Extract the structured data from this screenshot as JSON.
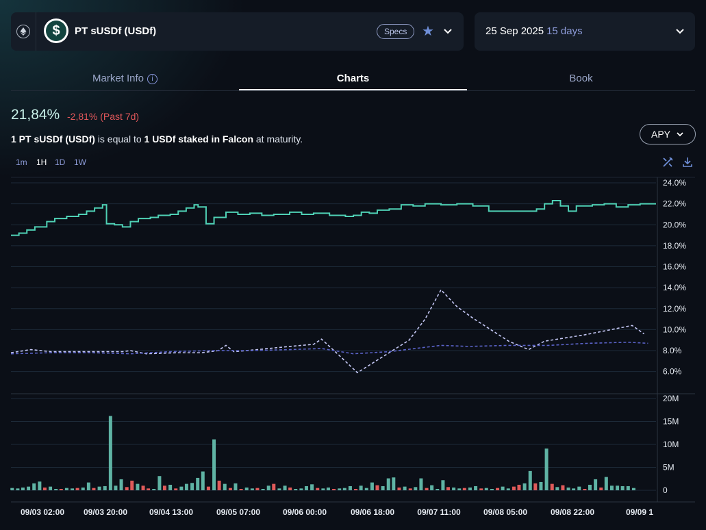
{
  "asset": {
    "name": "PT sUSDf (USDf)",
    "logo_symbol": "$",
    "specs_label": "Specs",
    "chain_icon": "ethereum-icon"
  },
  "maturity": {
    "date": "25 Sep 2025",
    "days": "15 days"
  },
  "tabs": [
    {
      "label": "Market Info"
    },
    {
      "label": "Charts"
    },
    {
      "label": "Book"
    }
  ],
  "summary": {
    "value": "21,84%",
    "change": "-2,81% (Past 7d)"
  },
  "description": {
    "p1": "1 PT sUSDf (USDf)",
    "p2": " is equal to ",
    "p3": "1 USDf staked in Falcon",
    "p4": " at maturity."
  },
  "metric_selector": {
    "label": "APY"
  },
  "timeframes": [
    {
      "label": "1m"
    },
    {
      "label": "1H"
    },
    {
      "label": "1D"
    },
    {
      "label": "1W"
    }
  ],
  "colors": {
    "implied": "#4fd1b5",
    "underlying": "#c5c8f5",
    "underlying_avg": "#5b63c9",
    "vol_up": "#5fb3a4",
    "vol_down": "#e05a5a"
  },
  "chart_data": {
    "type": "line",
    "x_ticks": [
      "09/03 02:00",
      "09/03 20:00",
      "09/04 13:00",
      "09/05 07:00",
      "09/06 00:00",
      "09/06 18:00",
      "09/07 11:00",
      "09/08 05:00",
      "09/08 22:00",
      "09/09 1"
    ],
    "y_ticks": [
      "24.0%",
      "22.0%",
      "20.0%",
      "18.0%",
      "16.0%",
      "14.0%",
      "12.0%",
      "10.0%",
      "8.0%",
      "6.0%"
    ],
    "ylim": [
      5,
      24
    ],
    "x_hours": [
      0,
      162
    ],
    "series": [
      {
        "values": [
          [
            0,
            19.0
          ],
          [
            2,
            19.2
          ],
          [
            4,
            19.5
          ],
          [
            6,
            19.8
          ],
          [
            9,
            20.3
          ],
          [
            11,
            20.6
          ],
          [
            14,
            20.8
          ],
          [
            17,
            21.0
          ],
          [
            19,
            21.3
          ],
          [
            21,
            21.6
          ],
          [
            23,
            21.9
          ],
          [
            24,
            20.1
          ],
          [
            26,
            20.0
          ],
          [
            28,
            19.8
          ],
          [
            30,
            20.3
          ],
          [
            32,
            20.6
          ],
          [
            35,
            20.7
          ],
          [
            37,
            20.9
          ],
          [
            40,
            21.0
          ],
          [
            42,
            21.3
          ],
          [
            44,
            21.6
          ],
          [
            46,
            21.9
          ],
          [
            47,
            21.7
          ],
          [
            49,
            20.1
          ],
          [
            51,
            20.7
          ],
          [
            54,
            21.2
          ],
          [
            57,
            21.0
          ],
          [
            60,
            21.1
          ],
          [
            63,
            20.9
          ],
          [
            66,
            21.0
          ],
          [
            70,
            21.2
          ],
          [
            73,
            21.0
          ],
          [
            76,
            21.1
          ],
          [
            80,
            20.9
          ],
          [
            84,
            20.8
          ],
          [
            86,
            20.9
          ],
          [
            88,
            21.2
          ],
          [
            90,
            21.1
          ],
          [
            92,
            21.4
          ],
          [
            95,
            21.5
          ],
          [
            98,
            21.9
          ],
          [
            101,
            21.8
          ],
          [
            104,
            22.0
          ],
          [
            108,
            21.9
          ],
          [
            112,
            22.0
          ],
          [
            116,
            21.8
          ],
          [
            120,
            21.3
          ],
          [
            124,
            21.3
          ],
          [
            128,
            21.3
          ],
          [
            132,
            21.5
          ],
          [
            134,
            22.0
          ],
          [
            136,
            22.3
          ],
          [
            138,
            21.8
          ],
          [
            140,
            21.3
          ],
          [
            142,
            21.8
          ],
          [
            146,
            21.9
          ],
          [
            149,
            22.0
          ],
          [
            152,
            21.7
          ],
          [
            155,
            21.9
          ],
          [
            158,
            22.0
          ],
          [
            161,
            22.0
          ]
        ]
      },
      {
        "values": [
          [
            0,
            7.8
          ],
          [
            5,
            8.1
          ],
          [
            10,
            7.9
          ],
          [
            20,
            7.9
          ],
          [
            28,
            7.9
          ],
          [
            30,
            8.0
          ],
          [
            34,
            7.7
          ],
          [
            42,
            7.8
          ],
          [
            48,
            7.8
          ],
          [
            52,
            8.0
          ],
          [
            54,
            8.5
          ],
          [
            56,
            7.9
          ],
          [
            62,
            8.1
          ],
          [
            70,
            8.4
          ],
          [
            76,
            8.6
          ],
          [
            78,
            9.1
          ],
          [
            82,
            7.7
          ],
          [
            87,
            5.9
          ],
          [
            100,
            9.0
          ],
          [
            104,
            11.0
          ],
          [
            108,
            13.8
          ],
          [
            112,
            12.2
          ],
          [
            116,
            11.1
          ],
          [
            125,
            8.9
          ],
          [
            130,
            8.1
          ],
          [
            134,
            8.9
          ],
          [
            144,
            9.5
          ],
          [
            156,
            10.4
          ],
          [
            159,
            9.6
          ]
        ]
      },
      {
        "values": [
          [
            0,
            7.7
          ],
          [
            10,
            7.8
          ],
          [
            20,
            7.8
          ],
          [
            30,
            7.7
          ],
          [
            40,
            7.9
          ],
          [
            50,
            8.0
          ],
          [
            60,
            8.0
          ],
          [
            70,
            8.1
          ],
          [
            78,
            8.2
          ],
          [
            86,
            7.7
          ],
          [
            95,
            7.9
          ],
          [
            108,
            8.5
          ],
          [
            115,
            8.4
          ],
          [
            125,
            8.5
          ],
          [
            135,
            8.5
          ],
          [
            145,
            8.7
          ],
          [
            155,
            8.8
          ],
          [
            160,
            8.7
          ]
        ]
      }
    ],
    "volume": {
      "y_ticks": [
        "20M",
        "15M",
        "10M",
        "5M",
        "0"
      ],
      "ylim": [
        0,
        20
      ],
      "bars": [
        [
          0.3,
          0.5,
          1
        ],
        [
          1.7,
          0.4,
          1
        ],
        [
          3.0,
          0.6,
          1
        ],
        [
          4.4,
          0.8,
          1
        ],
        [
          5.8,
          1.5,
          1
        ],
        [
          7.2,
          1.9,
          1
        ],
        [
          8.5,
          0.6,
          0
        ],
        [
          9.9,
          0.8,
          1
        ],
        [
          11.3,
          0.3,
          1
        ],
        [
          12.6,
          0.3,
          0
        ],
        [
          14.0,
          0.5,
          1
        ],
        [
          15.4,
          0.4,
          1
        ],
        [
          16.7,
          0.5,
          0
        ],
        [
          18.1,
          0.6,
          1
        ],
        [
          19.5,
          1.7,
          1
        ],
        [
          20.8,
          0.5,
          0
        ],
        [
          22.2,
          0.8,
          1
        ],
        [
          23.6,
          0.9,
          1
        ],
        [
          25.0,
          16.2,
          1
        ],
        [
          26.3,
          1.0,
          1
        ],
        [
          27.7,
          2.4,
          1
        ],
        [
          29.1,
          0.7,
          0
        ],
        [
          30.4,
          2.1,
          0
        ],
        [
          31.8,
          1.4,
          1
        ],
        [
          33.2,
          1.0,
          0
        ],
        [
          34.5,
          0.4,
          0
        ],
        [
          35.9,
          0.3,
          1
        ],
        [
          37.3,
          3.1,
          1
        ],
        [
          38.6,
          1.0,
          0
        ],
        [
          40.0,
          1.2,
          1
        ],
        [
          41.4,
          0.4,
          0
        ],
        [
          42.8,
          0.8,
          1
        ],
        [
          44.1,
          1.4,
          1
        ],
        [
          45.5,
          1.6,
          1
        ],
        [
          46.9,
          2.7,
          1
        ],
        [
          48.2,
          4.1,
          1
        ],
        [
          49.6,
          0.8,
          0
        ],
        [
          51.0,
          11.1,
          1
        ],
        [
          52.3,
          2.1,
          0
        ],
        [
          53.7,
          1.4,
          1
        ],
        [
          55.1,
          0.5,
          0
        ],
        [
          56.4,
          1.5,
          1
        ],
        [
          57.8,
          0.3,
          0
        ],
        [
          59.2,
          0.6,
          1
        ],
        [
          60.6,
          0.4,
          1
        ],
        [
          61.9,
          0.5,
          0
        ],
        [
          63.3,
          0.3,
          1
        ],
        [
          64.7,
          1.0,
          1
        ],
        [
          66.0,
          1.4,
          0
        ],
        [
          67.4,
          0.4,
          1
        ],
        [
          68.8,
          1.0,
          1
        ],
        [
          70.1,
          0.6,
          0
        ],
        [
          71.5,
          0.3,
          1
        ],
        [
          72.9,
          0.4,
          1
        ],
        [
          74.2,
          0.9,
          1
        ],
        [
          75.6,
          1.3,
          1
        ],
        [
          77.0,
          0.5,
          0
        ],
        [
          78.4,
          0.4,
          1
        ],
        [
          79.7,
          0.6,
          1
        ],
        [
          81.1,
          0.3,
          0
        ],
        [
          82.5,
          0.4,
          1
        ],
        [
          83.8,
          0.5,
          1
        ],
        [
          85.2,
          0.9,
          1
        ],
        [
          86.6,
          0.3,
          0
        ],
        [
          87.9,
          1.0,
          1
        ],
        [
          89.3,
          0.5,
          1
        ],
        [
          90.7,
          1.7,
          1
        ],
        [
          92.0,
          1.1,
          0
        ],
        [
          93.4,
          0.9,
          1
        ],
        [
          94.8,
          2.6,
          1
        ],
        [
          96.1,
          2.8,
          1
        ],
        [
          97.5,
          0.6,
          0
        ],
        [
          98.9,
          0.8,
          1
        ],
        [
          100.3,
          0.4,
          0
        ],
        [
          101.6,
          0.7,
          1
        ],
        [
          103.0,
          2.6,
          1
        ],
        [
          104.4,
          0.5,
          0
        ],
        [
          105.7,
          1.1,
          1
        ],
        [
          107.1,
          0.3,
          1
        ],
        [
          108.5,
          2.2,
          1
        ],
        [
          109.8,
          0.7,
          0
        ],
        [
          111.2,
          0.6,
          1
        ],
        [
          112.6,
          0.4,
          1
        ],
        [
          113.9,
          0.5,
          0
        ],
        [
          115.3,
          0.6,
          1
        ],
        [
          116.7,
          0.9,
          1
        ],
        [
          118.1,
          0.4,
          0
        ],
        [
          119.4,
          0.5,
          1
        ],
        [
          120.8,
          0.3,
          1
        ],
        [
          122.2,
          0.5,
          0
        ],
        [
          123.5,
          0.8,
          1
        ],
        [
          124.9,
          0.4,
          1
        ],
        [
          126.3,
          0.8,
          0
        ],
        [
          127.6,
          1.2,
          0
        ],
        [
          129.0,
          1.5,
          1
        ],
        [
          130.4,
          4.2,
          1
        ],
        [
          131.7,
          1.5,
          0
        ],
        [
          133.1,
          1.8,
          1
        ],
        [
          134.5,
          9.1,
          1
        ],
        [
          135.9,
          1.4,
          0
        ],
        [
          137.2,
          0.7,
          1
        ],
        [
          138.6,
          1.1,
          0
        ],
        [
          140.0,
          0.6,
          1
        ],
        [
          141.3,
          0.4,
          1
        ],
        [
          142.7,
          0.8,
          1
        ],
        [
          144.1,
          0.3,
          0
        ],
        [
          145.4,
          1.2,
          1
        ],
        [
          146.8,
          2.4,
          1
        ],
        [
          148.2,
          0.6,
          0
        ],
        [
          149.5,
          2.9,
          1
        ],
        [
          150.9,
          1.0,
          1
        ],
        [
          152.3,
          1.0,
          1
        ],
        [
          153.6,
          0.9,
          1
        ],
        [
          155.0,
          0.9,
          1
        ],
        [
          156.4,
          0.5,
          1
        ]
      ]
    }
  }
}
